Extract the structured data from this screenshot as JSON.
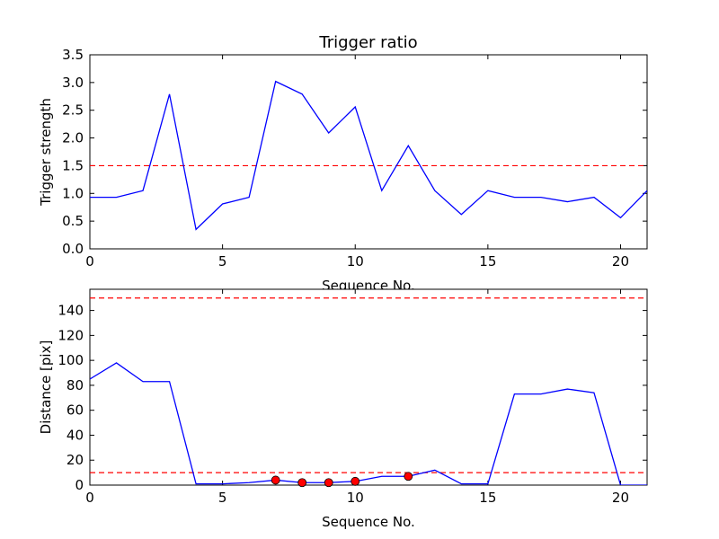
{
  "chart_data": [
    {
      "type": "line",
      "title": "Trigger ratio",
      "xlabel": "Sequence No.",
      "ylabel": "Trigger strength",
      "xlim": [
        0,
        21
      ],
      "ylim": [
        0,
        3.5
      ],
      "xticks": [
        "0",
        "5",
        "10",
        "15",
        "20"
      ],
      "yticks": [
        "0.0",
        "0.5",
        "1.0",
        "1.5",
        "2.0",
        "2.5",
        "3.0",
        "3.5"
      ],
      "grid": false,
      "series": [
        {
          "color": "#0000ff",
          "style": "solid",
          "x": [
            0,
            1,
            2,
            3,
            4,
            5,
            6,
            7,
            8,
            9,
            10,
            11,
            12,
            13,
            14,
            15,
            16,
            17,
            18,
            19,
            20,
            21
          ],
          "y": [
            0.93,
            0.93,
            1.05,
            2.79,
            0.35,
            0.81,
            0.93,
            3.02,
            2.79,
            2.09,
            2.56,
            1.05,
            1.86,
            1.05,
            0.62,
            1.05,
            0.93,
            0.93,
            0.85,
            0.93,
            0.56,
            1.05
          ]
        }
      ],
      "hlines": [
        {
          "y": 1.5,
          "color": "#ff0000",
          "style": "dashed"
        }
      ]
    },
    {
      "type": "line",
      "title": "",
      "xlabel": "Sequence No.",
      "ylabel": "Distance [pix]",
      "xlim": [
        0,
        21
      ],
      "ylim": [
        0,
        157
      ],
      "xticks": [
        "0",
        "5",
        "10",
        "15",
        "20"
      ],
      "yticks": [
        "0",
        "20",
        "40",
        "60",
        "80",
        "100",
        "120",
        "140"
      ],
      "grid": false,
      "series": [
        {
          "color": "#0000ff",
          "style": "solid",
          "x": [
            0,
            1,
            2,
            3,
            4,
            5,
            6,
            7,
            8,
            9,
            10,
            11,
            12,
            13,
            14,
            15,
            16,
            17,
            18,
            19,
            20,
            21
          ],
          "y": [
            85,
            98,
            83,
            83,
            1,
            1,
            2,
            4,
            2,
            2,
            3,
            7,
            7,
            12,
            1,
            1,
            73,
            73,
            77,
            74,
            0,
            0
          ]
        },
        {
          "color": "#ff0000",
          "style": "markers",
          "x": [
            7,
            8,
            9,
            10,
            12
          ],
          "y": [
            4,
            2,
            2,
            3,
            7
          ]
        }
      ],
      "hlines": [
        {
          "y": 150,
          "color": "#ff0000",
          "style": "dashed"
        },
        {
          "y": 10,
          "color": "#ff0000",
          "style": "dashed"
        }
      ]
    }
  ]
}
